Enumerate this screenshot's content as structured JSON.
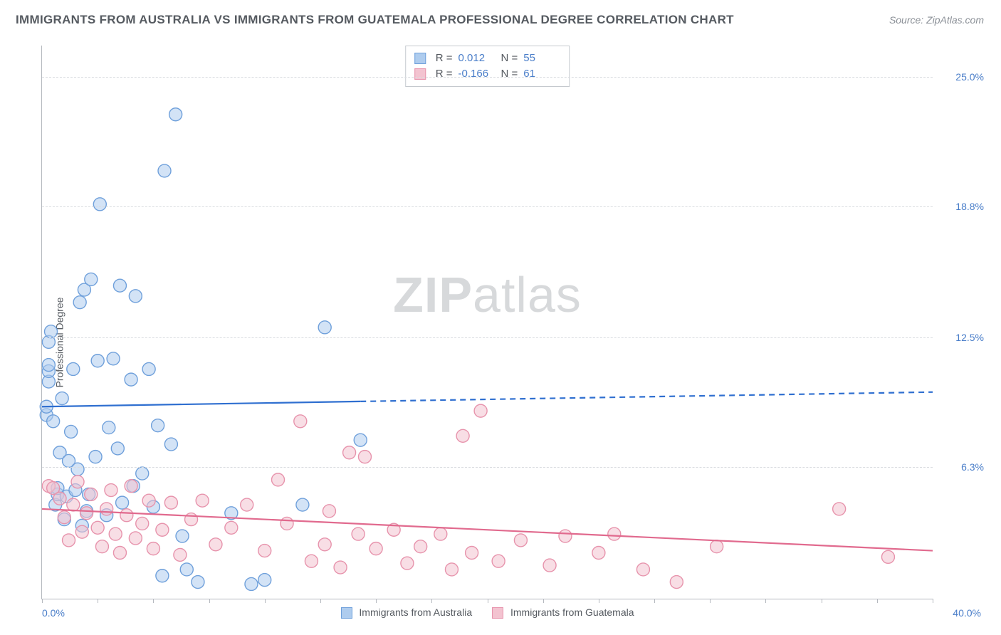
{
  "title": "IMMIGRANTS FROM AUSTRALIA VS IMMIGRANTS FROM GUATEMALA PROFESSIONAL DEGREE CORRELATION CHART",
  "source": "Source: ZipAtlas.com",
  "y_axis_label": "Professional Degree",
  "watermark": {
    "part1": "ZIP",
    "part2": "atlas"
  },
  "chart": {
    "type": "scatter",
    "background_color": "#ffffff",
    "grid_color": "#d9dce0",
    "axis_color": "#b5b9bf",
    "xlim": [
      0,
      40
    ],
    "ylim": [
      0,
      26.5
    ],
    "x_ticks_minor_step": 2.5,
    "y_ticks": [
      {
        "v": 6.3,
        "label": "6.3%"
      },
      {
        "v": 12.5,
        "label": "12.5%"
      },
      {
        "v": 18.8,
        "label": "18.8%"
      },
      {
        "v": 25.0,
        "label": "25.0%"
      }
    ],
    "x_label_min": "0.0%",
    "x_label_max": "40.0%",
    "tick_label_color": "#4a7ec9",
    "tick_label_fontsize": 14,
    "title_fontsize": 17,
    "title_color": "#555a60",
    "marker_radius": 9,
    "marker_opacity": 0.55,
    "line_width": 2.2,
    "series": [
      {
        "name": "Immigrants from Australia",
        "color_fill": "#aeccee",
        "color_stroke": "#6fa0db",
        "line_color": "#2f6fd0",
        "R": "0.012",
        "N": "55",
        "trend": {
          "y_at_xmin": 9.2,
          "y_at_xmax": 9.9,
          "solid_until_x": 14.3
        },
        "points": [
          [
            0.2,
            8.8
          ],
          [
            0.2,
            9.2
          ],
          [
            0.3,
            10.4
          ],
          [
            0.3,
            10.9
          ],
          [
            0.3,
            11.2
          ],
          [
            0.3,
            12.3
          ],
          [
            0.4,
            12.8
          ],
          [
            0.5,
            8.5
          ],
          [
            0.6,
            4.5
          ],
          [
            0.7,
            5.0
          ],
          [
            0.7,
            5.3
          ],
          [
            0.8,
            7.0
          ],
          [
            0.9,
            9.6
          ],
          [
            1.0,
            3.8
          ],
          [
            1.1,
            4.9
          ],
          [
            1.2,
            6.6
          ],
          [
            1.3,
            8.0
          ],
          [
            1.4,
            11.0
          ],
          [
            1.5,
            5.2
          ],
          [
            1.6,
            6.2
          ],
          [
            1.7,
            14.2
          ],
          [
            1.8,
            3.5
          ],
          [
            1.9,
            14.8
          ],
          [
            2.0,
            4.2
          ],
          [
            2.1,
            5.0
          ],
          [
            2.2,
            15.3
          ],
          [
            2.4,
            6.8
          ],
          [
            2.5,
            11.4
          ],
          [
            2.6,
            18.9
          ],
          [
            2.9,
            4.0
          ],
          [
            3.0,
            8.2
          ],
          [
            3.2,
            11.5
          ],
          [
            3.4,
            7.2
          ],
          [
            3.5,
            15.0
          ],
          [
            3.6,
            4.6
          ],
          [
            4.0,
            10.5
          ],
          [
            4.1,
            5.4
          ],
          [
            4.2,
            14.5
          ],
          [
            4.5,
            6.0
          ],
          [
            4.8,
            11.0
          ],
          [
            5.0,
            4.4
          ],
          [
            5.2,
            8.3
          ],
          [
            5.4,
            1.1
          ],
          [
            5.5,
            20.5
          ],
          [
            5.8,
            7.4
          ],
          [
            6.0,
            23.2
          ],
          [
            6.3,
            3.0
          ],
          [
            6.5,
            1.4
          ],
          [
            7.0,
            0.8
          ],
          [
            8.5,
            4.1
          ],
          [
            9.4,
            0.7
          ],
          [
            10.0,
            0.9
          ],
          [
            11.7,
            4.5
          ],
          [
            12.7,
            13.0
          ],
          [
            14.3,
            7.6
          ]
        ]
      },
      {
        "name": "Immigrants from Guatemala",
        "color_fill": "#f3c3d0",
        "color_stroke": "#e793ac",
        "line_color": "#e16a8e",
        "R": "-0.166",
        "N": "61",
        "trend": {
          "y_at_xmin": 4.3,
          "y_at_xmax": 2.3,
          "solid_until_x": 40
        },
        "points": [
          [
            0.3,
            5.4
          ],
          [
            0.5,
            5.3
          ],
          [
            0.8,
            4.8
          ],
          [
            1.0,
            3.9
          ],
          [
            1.2,
            2.8
          ],
          [
            1.4,
            4.5
          ],
          [
            1.6,
            5.6
          ],
          [
            1.8,
            3.2
          ],
          [
            2.0,
            4.1
          ],
          [
            2.2,
            5.0
          ],
          [
            2.5,
            3.4
          ],
          [
            2.7,
            2.5
          ],
          [
            2.9,
            4.3
          ],
          [
            3.1,
            5.2
          ],
          [
            3.3,
            3.1
          ],
          [
            3.5,
            2.2
          ],
          [
            3.8,
            4.0
          ],
          [
            4.0,
            5.4
          ],
          [
            4.2,
            2.9
          ],
          [
            4.5,
            3.6
          ],
          [
            4.8,
            4.7
          ],
          [
            5.0,
            2.4
          ],
          [
            5.4,
            3.3
          ],
          [
            5.8,
            4.6
          ],
          [
            6.2,
            2.1
          ],
          [
            6.7,
            3.8
          ],
          [
            7.2,
            4.7
          ],
          [
            7.8,
            2.6
          ],
          [
            8.5,
            3.4
          ],
          [
            9.2,
            4.5
          ],
          [
            10.0,
            2.3
          ],
          [
            10.6,
            5.7
          ],
          [
            11.0,
            3.6
          ],
          [
            11.6,
            8.5
          ],
          [
            12.1,
            1.8
          ],
          [
            12.7,
            2.6
          ],
          [
            12.9,
            4.2
          ],
          [
            13.4,
            1.5
          ],
          [
            13.8,
            7.0
          ],
          [
            14.2,
            3.1
          ],
          [
            14.5,
            6.8
          ],
          [
            15.0,
            2.4
          ],
          [
            15.8,
            3.3
          ],
          [
            16.4,
            1.7
          ],
          [
            17.0,
            2.5
          ],
          [
            17.9,
            3.1
          ],
          [
            18.4,
            1.4
          ],
          [
            18.9,
            7.8
          ],
          [
            19.3,
            2.2
          ],
          [
            19.7,
            9.0
          ],
          [
            20.5,
            1.8
          ],
          [
            21.5,
            2.8
          ],
          [
            22.8,
            1.6
          ],
          [
            23.5,
            3.0
          ],
          [
            25.0,
            2.2
          ],
          [
            25.7,
            3.1
          ],
          [
            27.0,
            1.4
          ],
          [
            28.5,
            0.8
          ],
          [
            30.3,
            2.5
          ],
          [
            35.8,
            4.3
          ],
          [
            38.0,
            2.0
          ]
        ]
      }
    ]
  },
  "bottom_legend": [
    {
      "label": "Immigrants from Australia",
      "fill": "#aeccee",
      "stroke": "#6fa0db"
    },
    {
      "label": "Immigrants from Guatemala",
      "fill": "#f3c3d0",
      "stroke": "#e793ac"
    }
  ]
}
